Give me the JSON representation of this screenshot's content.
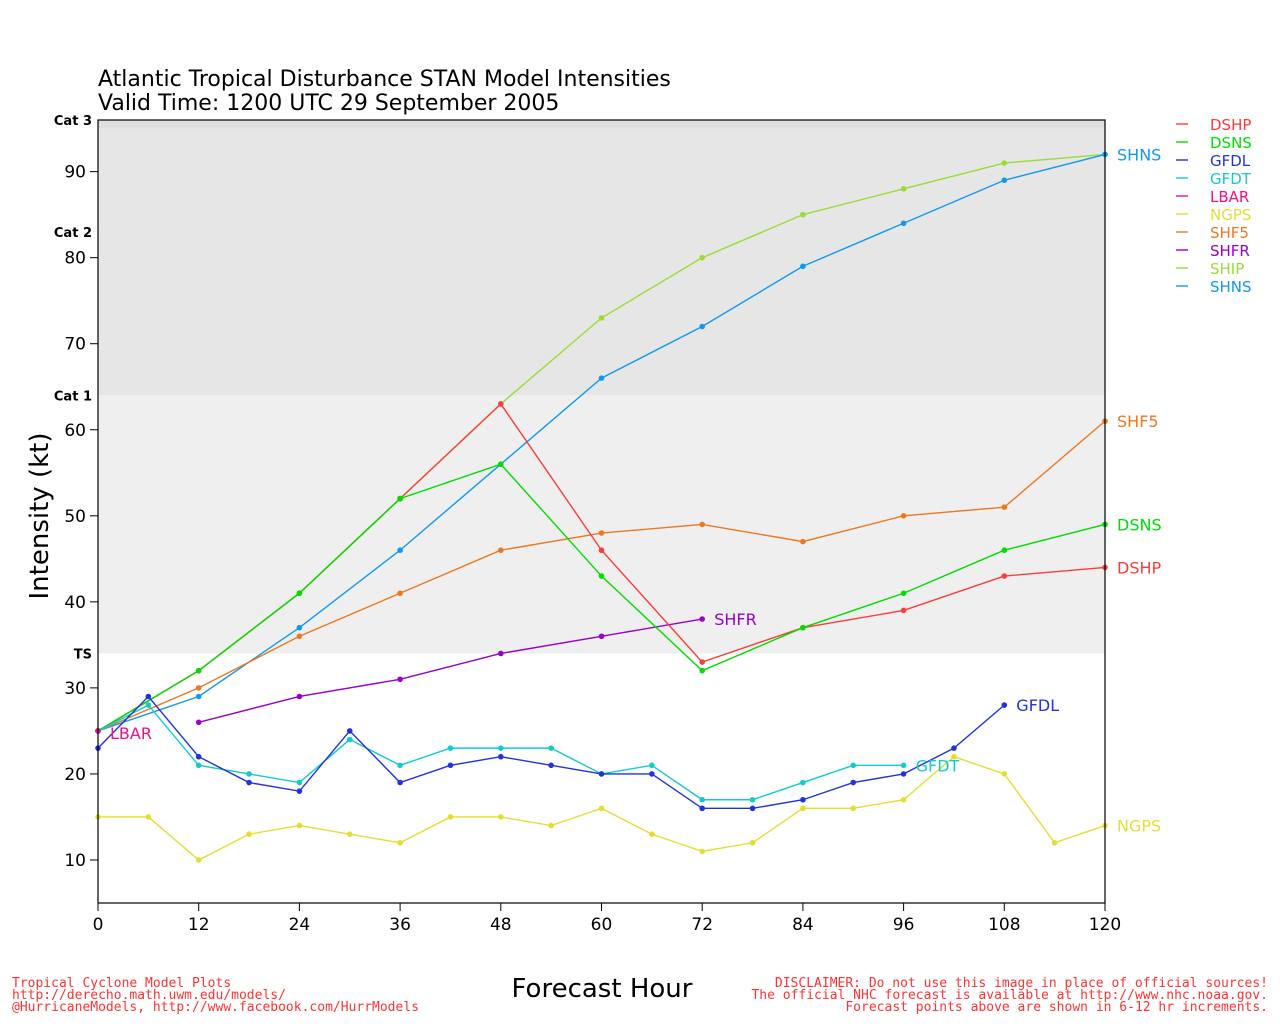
{
  "title_line1": "Atlantic Tropical Disturbance STAN Model Intensities",
  "title_line2": "Valid Time: 1200 UTC 29 September 2005",
  "footer_left": [
    "Tropical Cyclone Model Plots",
    "http://derecho.math.uwm.edu/models/",
    "@HurricaneModels, http://www.facebook.com/HurrModels"
  ],
  "footer_right": [
    "DISCLAIMER: Do not use this image in place of official sources!",
    "The official NHC forecast is available at http://www.nhc.noaa.gov.",
    "Forecast points above are shown in 6-12 hr increments."
  ],
  "chart_data": {
    "type": "line",
    "xlabel": "Forecast Hour",
    "ylabel": "Intensity (kt)",
    "xlim": [
      0,
      120
    ],
    "ylim": [
      5,
      96
    ],
    "xticks": [
      0,
      12,
      24,
      36,
      48,
      60,
      72,
      84,
      96,
      108,
      120
    ],
    "yticks": [
      10,
      20,
      30,
      40,
      50,
      60,
      70,
      80,
      90
    ],
    "legend_position": "top-right, outside plot",
    "bands": [
      {
        "label": "TS",
        "from": 34,
        "to": 64,
        "color": "#efefef"
      },
      {
        "label": "Cat 1",
        "from": 64,
        "to": 83,
        "color": "#e6e6e6"
      },
      {
        "label": "Cat 2",
        "from": 83,
        "to": 95,
        "color": "#e6e6e6"
      },
      {
        "label": "Cat 3",
        "from": 95,
        "to": 96,
        "color": "#dedede"
      }
    ],
    "band_labels": [
      {
        "label": "Cat 3",
        "value": 96
      },
      {
        "label": "Cat 2",
        "value": 83
      },
      {
        "label": "Cat 1",
        "value": 64
      },
      {
        "label": "TS",
        "value": 34
      }
    ],
    "series": [
      {
        "name": "DSHP",
        "color": "#ff3b3b",
        "x": [
          0,
          12,
          24,
          36,
          48,
          60,
          72,
          84,
          96,
          108,
          120
        ],
        "y": [
          25,
          32,
          41,
          52,
          63,
          46,
          33,
          37,
          39,
          43,
          44
        ],
        "label_end": true
      },
      {
        "name": "DSNS",
        "color": "#00dd00",
        "x": [
          0,
          12,
          24,
          36,
          48,
          60,
          72,
          84,
          96,
          108,
          120
        ],
        "y": [
          25,
          32,
          41,
          52,
          56,
          43,
          32,
          37,
          41,
          46,
          49
        ],
        "label_end": true
      },
      {
        "name": "GFDL",
        "color": "#2233dd",
        "x": [
          0,
          6,
          12,
          18,
          24,
          30,
          36,
          42,
          48,
          54,
          60,
          66,
          72,
          78,
          84,
          90,
          96,
          102,
          108
        ],
        "y": [
          23,
          29,
          22,
          19,
          18,
          25,
          19,
          21,
          22,
          21,
          20,
          20,
          16,
          16,
          17,
          19,
          20,
          23,
          28
        ],
        "label_end": true
      },
      {
        "name": "GFDT",
        "color": "#11cccc",
        "x": [
          0,
          6,
          12,
          18,
          24,
          30,
          36,
          42,
          48,
          54,
          60,
          66,
          72,
          78,
          84,
          90,
          96
        ],
        "y": [
          25,
          28,
          21,
          20,
          19,
          24,
          21,
          23,
          23,
          23,
          20,
          21,
          17,
          17,
          19,
          21,
          21
        ],
        "label_end": true
      },
      {
        "name": "LBAR",
        "color": "#ee1188",
        "x": [
          0
        ],
        "y": [
          25
        ],
        "label_end": true
      },
      {
        "name": "NGPS",
        "color": "#e6dd33",
        "x": [
          0,
          6,
          12,
          18,
          24,
          30,
          36,
          42,
          48,
          54,
          60,
          66,
          72,
          78,
          84,
          90,
          96,
          102,
          108,
          114,
          120
        ],
        "y": [
          15,
          15,
          10,
          13,
          14,
          13,
          12,
          15,
          15,
          14,
          16,
          13,
          11,
          12,
          16,
          16,
          17,
          22,
          20,
          12,
          14
        ],
        "label_end": true
      },
      {
        "name": "SHF5",
        "color": "#ee7722",
        "x": [
          0,
          12,
          24,
          36,
          48,
          60,
          72,
          84,
          96,
          108,
          120
        ],
        "y": [
          25,
          30,
          36,
          41,
          46,
          48,
          49,
          47,
          50,
          51,
          61
        ],
        "label_end": true
      },
      {
        "name": "SHFR",
        "color": "#9900cc",
        "x": [
          12,
          24,
          36,
          48,
          60,
          72
        ],
        "y": [
          26,
          29,
          31,
          34,
          36,
          38
        ],
        "label_end": true
      },
      {
        "name": "SHIP",
        "color": "#99dd33",
        "x": [
          0,
          12,
          24,
          36,
          48,
          60,
          72,
          84,
          96,
          108,
          120
        ],
        "y": [
          25,
          32,
          41,
          52,
          63,
          73,
          80,
          85,
          88,
          91,
          92
        ],
        "label_end": false
      },
      {
        "name": "SHNS",
        "color": "#1199ee",
        "x": [
          0,
          12,
          24,
          36,
          48,
          60,
          72,
          84,
          96,
          108,
          120
        ],
        "y": [
          25,
          29,
          37,
          46,
          56,
          66,
          72,
          79,
          84,
          89,
          92
        ],
        "label_end": true
      }
    ]
  }
}
